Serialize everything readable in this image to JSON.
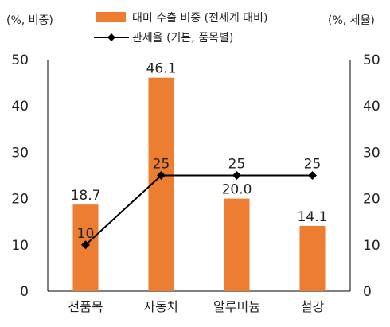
{
  "chart_data": {
    "type": "bar",
    "categories": [
      "전품목",
      "자동차",
      "알루미늄",
      "철강"
    ],
    "series": [
      {
        "name": "대미 수출 비중 (전세계 대비)",
        "type": "bar",
        "axis": "left",
        "values": [
          18.7,
          46.1,
          20.0,
          14.1
        ],
        "labels": [
          "18.7",
          "46.1",
          "20.0",
          "14.1"
        ]
      },
      {
        "name": "관세율 (기본, 품목별)",
        "type": "line",
        "axis": "right",
        "values": [
          10,
          25,
          25,
          25
        ],
        "labels": [
          "10",
          "25",
          "25",
          "25"
        ]
      }
    ],
    "left_axis": {
      "unit": "(%, 비중)",
      "ylim": [
        0,
        50
      ],
      "ticks": [
        "0",
        "10",
        "20",
        "30",
        "40",
        "50"
      ]
    },
    "right_axis": {
      "unit": "(%, 세율)",
      "ylim": [
        0,
        50
      ],
      "ticks": [
        "0",
        "10",
        "20",
        "30",
        "40",
        "50"
      ]
    },
    "grid": false,
    "legend_position": "top-center"
  },
  "colors": {
    "bar": "#ED7D31",
    "line": "#000000",
    "axis": "#000000",
    "text": "#222222"
  }
}
